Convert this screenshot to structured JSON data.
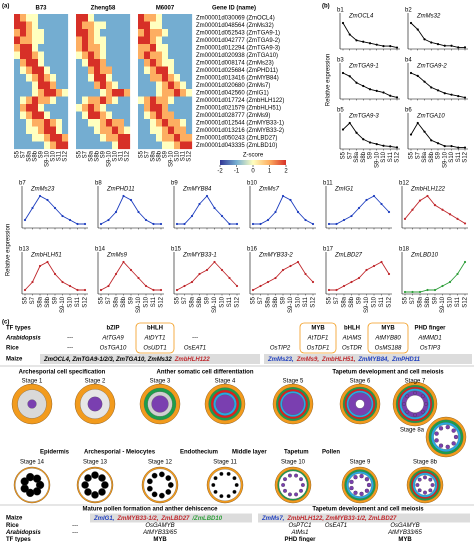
{
  "panel_labels": {
    "a": "(a)",
    "b": "(b)",
    "c": "(c)"
  },
  "chart_data": [
    {
      "type": "heatmap",
      "column_groups": [
        "B73",
        "Zheng58",
        "M6007"
      ],
      "row_header": "Gene ID (name)",
      "x": [
        "S5",
        "S7",
        "S8a",
        "S8b",
        "S9",
        "S9-10",
        "S10",
        "S11",
        "S12"
      ],
      "rows": [
        {
          "label": "Zm00001d030069 (ZmOCL4)",
          "color": "#000000"
        },
        {
          "label": "Zm00001d048564 (ZmMs32)",
          "color": "#000000"
        },
        {
          "label": "Zm00001d052543 (ZmTGA9-1)",
          "color": "#000000"
        },
        {
          "label": "Zm00001d042777 (ZmTGA9-2)",
          "color": "#000000"
        },
        {
          "label": "Zm00001d012294 (ZmTGA9-3)",
          "color": "#000000"
        },
        {
          "label": "Zm00001d020938 (ZmTGA10)",
          "color": "#000000"
        },
        {
          "label": "Zm00001d008174 (ZmMs23)",
          "color": "#1f3fbf"
        },
        {
          "label": "Zm00001d025684 (ZmPHD11)",
          "color": "#1f3fbf"
        },
        {
          "label": "Zm00001d013416 (ZmMYB84)",
          "color": "#1f3fbf"
        },
        {
          "label": "Zm00001d020680 (ZmMs7)",
          "color": "#1f3fbf"
        },
        {
          "label": "Zm00001d042560 (ZmIG1)",
          "color": "#1f3fbf"
        },
        {
          "label": "Zm00001d017724 (ZmbHLH122)",
          "color": "#c0282d"
        },
        {
          "label": "Zm00001d021579 (ZmbHLH51)",
          "color": "#c0282d"
        },
        {
          "label": "Zm00001d028777 (ZmMs9)",
          "color": "#c0282d"
        },
        {
          "label": "Zm00001d012544 (ZmMYB33-1)",
          "color": "#c0282d"
        },
        {
          "label": "Zm00001d013216 (ZmMYB33-2)",
          "color": "#c0282d"
        },
        {
          "label": "Zm00001d050243 (ZmLBD27)",
          "color": "#c0282d"
        },
        {
          "label": "Zm00001d043335 (ZmLBD10)",
          "color": "#2e9e3a"
        }
      ],
      "values": [
        [
          2,
          1,
          0,
          0,
          -1,
          -1,
          -1,
          -1,
          -1,
          2,
          2,
          0,
          -1,
          -1,
          -1,
          -1,
          -1,
          -1,
          2,
          1,
          1,
          0,
          -1,
          -1,
          -1,
          -1,
          -1
        ],
        [
          2,
          2,
          1,
          0,
          -1,
          -1,
          -1,
          -1,
          -1,
          2,
          1,
          1,
          0,
          0,
          -1,
          -1,
          -1,
          -1,
          2,
          2,
          0,
          0,
          -1,
          -1,
          -1,
          -1,
          -1
        ],
        [
          1,
          2,
          1,
          0,
          0,
          -1,
          -1,
          -1,
          -1,
          2,
          2,
          1,
          0,
          -1,
          -1,
          -1,
          -1,
          -1,
          1,
          2,
          1,
          1,
          0,
          -1,
          -1,
          -1,
          -1
        ],
        [
          2,
          1,
          1,
          0,
          0,
          -1,
          -1,
          -1,
          -1,
          1,
          2,
          1,
          0,
          0,
          -1,
          -1,
          -1,
          -1,
          2,
          2,
          1,
          0,
          -1,
          -1,
          -1,
          -1,
          -1
        ],
        [
          1,
          2,
          2,
          0,
          -1,
          -1,
          -1,
          -1,
          -1,
          1,
          2,
          1,
          1,
          0,
          -1,
          -1,
          -1,
          -1,
          1,
          1,
          2,
          0,
          0,
          -1,
          -1,
          -1,
          -1
        ],
        [
          0,
          2,
          2,
          1,
          0,
          -1,
          -1,
          -1,
          -1,
          0,
          1,
          2,
          1,
          0,
          -1,
          -1,
          -1,
          -1,
          1,
          2,
          1,
          1,
          0,
          -1,
          -1,
          -1,
          -1
        ],
        [
          -1,
          1,
          2,
          2,
          0,
          -1,
          -1,
          -1,
          -1,
          -1,
          0,
          2,
          2,
          1,
          -1,
          -1,
          -1,
          -1,
          -1,
          1,
          2,
          1,
          0,
          0,
          -1,
          -1,
          -1
        ],
        [
          -1,
          0,
          1,
          2,
          2,
          0,
          -1,
          -1,
          -1,
          -1,
          -1,
          1,
          2,
          1,
          1,
          -1,
          -1,
          -1,
          -1,
          0,
          1,
          2,
          2,
          0,
          -1,
          -1,
          -1
        ],
        [
          -1,
          -1,
          0,
          1,
          2,
          1,
          0,
          -1,
          -1,
          -1,
          -1,
          0,
          2,
          2,
          0,
          -1,
          -1,
          -1,
          -1,
          -1,
          1,
          1,
          2,
          1,
          0,
          -1,
          -1
        ],
        [
          -1,
          -1,
          -1,
          0,
          2,
          2,
          1,
          -1,
          -1,
          -1,
          -1,
          -1,
          1,
          2,
          1,
          0,
          -1,
          -1,
          -1,
          -1,
          -1,
          0,
          1,
          2,
          1,
          0,
          -1
        ],
        [
          -1,
          -1,
          -1,
          0,
          1,
          2,
          2,
          1,
          0,
          -1,
          -1,
          -1,
          -1,
          0,
          1,
          2,
          2,
          1,
          -1,
          -1,
          -1,
          0,
          1,
          1,
          2,
          1,
          0
        ],
        [
          -1,
          0,
          1,
          2,
          1,
          1,
          0,
          -1,
          -1,
          -1,
          0,
          1,
          1,
          2,
          1,
          0,
          -1,
          -1,
          0,
          1,
          2,
          1,
          1,
          0,
          -1,
          -1,
          -1
        ],
        [
          -1,
          1,
          2,
          2,
          0,
          -1,
          -1,
          -1,
          -1,
          0,
          1,
          2,
          1,
          0,
          -1,
          -1,
          -1,
          -1,
          -1,
          1,
          2,
          2,
          1,
          -1,
          -1,
          -1,
          -1
        ],
        [
          -1,
          0,
          1,
          2,
          2,
          0,
          -1,
          -1,
          -1,
          -1,
          0,
          2,
          2,
          1,
          0,
          -1,
          -1,
          -1,
          -1,
          0,
          1,
          2,
          1,
          1,
          -1,
          -1,
          -1
        ],
        [
          -1,
          -1,
          0,
          1,
          1,
          2,
          1,
          0,
          -1,
          -1,
          -1,
          0,
          0,
          1,
          2,
          1,
          1,
          -1,
          -1,
          -1,
          0,
          1,
          2,
          1,
          1,
          0,
          -1
        ],
        [
          -1,
          -1,
          0,
          0,
          1,
          2,
          2,
          0,
          -1,
          -1,
          -1,
          -1,
          0,
          1,
          1,
          2,
          1,
          0,
          -1,
          -1,
          0,
          0,
          1,
          2,
          1,
          1,
          -1
        ],
        [
          -1,
          -1,
          -1,
          0,
          0,
          1,
          2,
          2,
          1,
          -1,
          -1,
          -1,
          -1,
          0,
          1,
          1,
          2,
          2,
          -1,
          -1,
          -1,
          0,
          1,
          1,
          2,
          1,
          1
        ],
        [
          -1,
          -1,
          -1,
          -1,
          -1,
          0,
          1,
          2,
          2,
          -1,
          -1,
          -1,
          -1,
          -1,
          -1,
          0,
          2,
          2,
          -1,
          -1,
          -1,
          -1,
          0,
          0,
          1,
          2,
          2
        ]
      ],
      "colorbar": {
        "title": "Z-score",
        "lim": [
          -2,
          2
        ],
        "ticks": [
          -2,
          -1,
          0,
          1,
          2
        ],
        "colors": [
          "#313695",
          "#74add1",
          "#ffffbf",
          "#fdae61",
          "#d73027"
        ]
      }
    },
    {
      "type": "line",
      "ylabel": "Relative expression",
      "x": [
        "S5",
        "S7",
        "S8a",
        "S8b",
        "S9",
        "S9-10",
        "S10",
        "S11",
        "S12"
      ],
      "panels": [
        {
          "label": "b1",
          "name": "ZmOCL4",
          "color": "#000000",
          "values": [
            9,
            5,
            3,
            2.5,
            2,
            1.5,
            1,
            1,
            0.5
          ]
        },
        {
          "label": "b2",
          "name": "ZmMs32",
          "color": "#000000",
          "values": [
            8,
            6,
            3,
            2,
            1.5,
            1,
            1,
            0.5,
            0.5
          ]
        },
        {
          "label": "b3",
          "name": "ZmTGA9-1",
          "color": "#000000",
          "values": [
            8,
            7,
            5,
            4,
            3,
            2.5,
            2,
            1,
            0.5
          ]
        },
        {
          "label": "b4",
          "name": "ZmTGA9-2",
          "color": "#000000",
          "values": [
            9,
            8,
            6,
            4,
            3,
            2,
            1.5,
            1,
            0.5
          ]
        },
        {
          "label": "b5",
          "name": "ZmTGA9-3",
          "color": "#000000",
          "values": [
            6,
            8,
            5,
            3,
            2,
            1.5,
            1,
            0.8,
            0.5
          ]
        },
        {
          "label": "b6",
          "name": "ZmTGA10",
          "color": "#000000",
          "values": [
            5,
            9,
            6,
            3,
            2,
            1,
            1,
            0.5,
            0.5
          ]
        },
        {
          "label": "b7",
          "name": "ZmMs23",
          "color": "#1f3fbf",
          "values": [
            2,
            5,
            8,
            7,
            5,
            3,
            2,
            1,
            1
          ]
        },
        {
          "label": "b8",
          "name": "ZmPHD11",
          "color": "#1f3fbf",
          "values": [
            1,
            2,
            4,
            8,
            7,
            4,
            2,
            1,
            1
          ]
        },
        {
          "label": "b9",
          "name": "ZmMYB84",
          "color": "#1f3fbf",
          "values": [
            1,
            1,
            3,
            6,
            8,
            5,
            3,
            1,
            1
          ]
        },
        {
          "label": "b10",
          "name": "ZmMs7",
          "color": "#1f3fbf",
          "values": [
            1,
            1,
            2,
            4,
            8,
            7,
            4,
            2,
            1
          ]
        },
        {
          "label": "b11",
          "name": "ZmIG1",
          "color": "#1f3fbf",
          "values": [
            1,
            1,
            2,
            3,
            5,
            7,
            8,
            6,
            4
          ]
        },
        {
          "label": "b12",
          "name": "ZmbHLH122",
          "color": "#c0282d",
          "values": [
            2,
            4,
            6,
            7,
            5,
            4,
            3,
            2,
            1
          ]
        },
        {
          "label": "b13",
          "name": "ZmbHLH51",
          "color": "#c0282d",
          "values": [
            1,
            3,
            7,
            8,
            5,
            3,
            2,
            1,
            1
          ]
        },
        {
          "label": "b14",
          "name": "ZmMs9",
          "color": "#c0282d",
          "values": [
            1,
            2,
            5,
            8,
            6,
            4,
            2,
            1,
            1
          ]
        },
        {
          "label": "b15",
          "name": "ZmMYB33-1",
          "color": "#c0282d",
          "values": [
            1,
            2,
            3,
            5,
            6,
            8,
            6,
            4,
            2
          ]
        },
        {
          "label": "b16",
          "name": "ZmMYB33-2",
          "color": "#c0282d",
          "values": [
            1,
            2,
            3,
            4,
            6,
            7,
            8,
            5,
            3
          ]
        },
        {
          "label": "b17",
          "name": "ZmLBD27",
          "color": "#c0282d",
          "values": [
            1,
            1,
            2,
            3,
            4,
            6,
            7,
            8,
            5
          ]
        },
        {
          "label": "b18",
          "name": "ZmLBD10",
          "color": "#2e9e3a",
          "values": [
            0.5,
            0.5,
            0.5,
            1,
            1,
            2,
            3,
            5,
            8
          ]
        }
      ]
    }
  ],
  "diagram": {
    "top_table": {
      "row_labels": [
        "TF types",
        "Arabidopsis",
        "Rice",
        "Maize"
      ],
      "tf_types": [
        "bZIP",
        "bHLH",
        "MYB",
        "bHLH",
        "MYB",
        "PHD finger"
      ],
      "arabidopsis": [
        "---",
        "AtTGA9",
        "AtDYT1",
        "---",
        "AtTDF1",
        "AtAMS",
        "AtMYB80",
        "AtMMD1"
      ],
      "rice": [
        "---",
        "OsTGA10",
        "OsUDT1",
        "OsEAT1",
        "OsTIP2",
        "OsTDF1",
        "OsTDR",
        "OsMS188",
        "OsTIP3"
      ],
      "maize": [
        {
          "text": "ZmOCL4, ZmTGA9-1/2/3, ZmTGA10, ZmMs32",
          "color": "#000000"
        },
        {
          "text": "ZmbHLH122",
          "color": "#c0282d"
        },
        {
          "text": "ZmMs23,",
          "color": "#1f3fbf"
        },
        {
          "text": "ZmMs9,",
          "color": "#c0282d"
        },
        {
          "text": "ZmbHLH51,",
          "color": "#c0282d"
        },
        {
          "text": "ZmMYB84,",
          "color": "#1f3fbf"
        },
        {
          "text": "ZmPHD11",
          "color": "#1f3fbf"
        }
      ]
    },
    "sections_top": [
      "Archesporial cell specification",
      "Anther somatic cell differentiation",
      "Tapetum development and cell meiosis"
    ],
    "stages_top": [
      "Stage 1",
      "Stage 2",
      "Stage 3",
      "Stage 4",
      "Stage 5",
      "Stage 6",
      "Stage 7",
      "Stage 8a"
    ],
    "stages_bottom": [
      "Stage 14",
      "Stage 13",
      "Stage 12",
      "Stage 11",
      "Stage 10",
      "Stage 9",
      "Stage 8b"
    ],
    "legend": [
      {
        "text": "Epidermis",
        "color": "#f29b1d"
      },
      {
        "text": "Archesporial - Meiocytes",
        "color": "#7a3fb0"
      },
      {
        "text": "Endothecium",
        "color": "#1e9e4a"
      },
      {
        "text": "Middle layer",
        "color": "#e0201b"
      },
      {
        "text": "Tapetum",
        "color": "#27a9e1"
      },
      {
        "text": "Pollen",
        "color": "#000000"
      }
    ],
    "sections_bottom": [
      "Mature pollen formation and anther dehiscence",
      "Tapetum development and cell meiosis"
    ],
    "bottom_table": {
      "row_labels": [
        "Maize",
        "Rice",
        "Arabidopsis",
        "TF types"
      ],
      "maize_left": [
        {
          "text": "ZmIG1,",
          "color": "#1f3fbf"
        },
        {
          "text": "ZmMYB33-1/2,",
          "color": "#c0282d"
        },
        {
          "text": "ZmLBD27",
          "color": "#c0282d"
        },
        {
          "text": "/ZmLBD10",
          "color": "#2e9e3a"
        }
      ],
      "maize_right": [
        {
          "text": "ZmMs7,",
          "color": "#1f3fbf"
        },
        {
          "text": "ZmbHLH122, ZmMYB33-1/2, ZmLBD27",
          "color": "#c0282d"
        }
      ],
      "rice_left": [
        "---",
        "OsGAMYB"
      ],
      "rice_right": [
        "OsPTC1",
        "OsEAT1",
        "OsGAMYB"
      ],
      "arabidopsis_left": [
        "---",
        "AtMYB33/65"
      ],
      "arabidopsis_right": [
        "AtMs1",
        "AtMYB33/65"
      ],
      "tf_left": [
        "MYB"
      ],
      "tf_right": [
        "PHD finger",
        "MYB"
      ]
    }
  }
}
